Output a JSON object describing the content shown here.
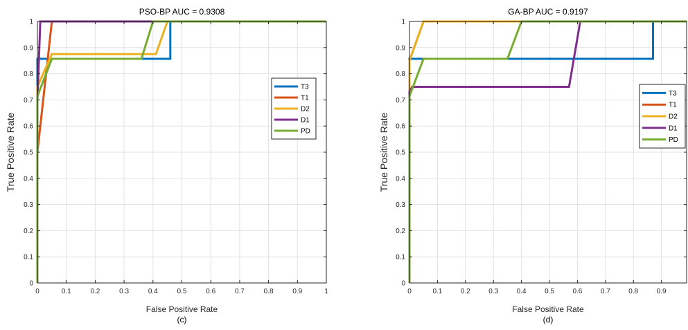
{
  "chart_data": [
    {
      "type": "line",
      "title": "PSO-BP AUC = 0.9308",
      "xlabel": "False Positive Rate",
      "ylabel": "True Positive Rate",
      "caption": "(c)",
      "xlim": [
        0,
        1
      ],
      "ylim": [
        0,
        1
      ],
      "xticks": [
        "0",
        "0.1",
        "0.2",
        "0.3",
        "0.4",
        "0.5",
        "0.6",
        "0.7",
        "0.8",
        "0.9",
        "1"
      ],
      "yticks": [
        "0",
        "0.1",
        "0.2",
        "0.3",
        "0.4",
        "0.5",
        "0.6",
        "0.7",
        "0.8",
        "0.9",
        "1"
      ],
      "grid": true,
      "legend": "right",
      "series": [
        {
          "name": "T3",
          "color": "#0072bd",
          "x": [
            0,
            0,
            0.46,
            0.46,
            1
          ],
          "y": [
            0,
            0.857,
            0.857,
            1,
            1
          ]
        },
        {
          "name": "T1",
          "color": "#d95319",
          "x": [
            0,
            0,
            0.05,
            1
          ],
          "y": [
            0,
            0.5,
            1,
            1
          ]
        },
        {
          "name": "D2",
          "color": "#edb120",
          "x": [
            0,
            0,
            0.05,
            0.41,
            0.45,
            1
          ],
          "y": [
            0,
            0.75,
            0.875,
            0.875,
            1,
            1
          ]
        },
        {
          "name": "D1",
          "color": "#7e2f8e",
          "x": [
            0,
            0,
            0.01,
            1
          ],
          "y": [
            0,
            0.7,
            1,
            1
          ]
        },
        {
          "name": "PD",
          "color": "#77ac30",
          "x": [
            0,
            0,
            0.05,
            0.36,
            0.4,
            1
          ],
          "y": [
            0,
            0.714,
            0.857,
            0.857,
            1,
            1
          ]
        }
      ]
    },
    {
      "type": "line",
      "title": "GA-BP AUC = 0.9197",
      "xlabel": "False Positive Rate",
      "ylabel": "True Positive Rate",
      "caption": "(d)",
      "xlim": [
        0,
        0.99
      ],
      "ylim": [
        0,
        1
      ],
      "xticks": [
        "0",
        "0.1",
        "0.2",
        "0.3",
        "0.4",
        "0.5",
        "0.6",
        "0.7",
        "0.8",
        "0.9"
      ],
      "yticks": [
        "0",
        "0.1",
        "0.2",
        "0.3",
        "0.4",
        "0.5",
        "0.6",
        "0.7",
        "0.8",
        "0.9",
        "1"
      ],
      "grid": true,
      "legend": "right",
      "series": [
        {
          "name": "T3",
          "color": "#0072bd",
          "x": [
            0,
            0,
            0.05,
            0.87,
            0.87,
            0.99
          ],
          "y": [
            0,
            0.857,
            0.857,
            0.857,
            1,
            1
          ]
        },
        {
          "name": "T1",
          "color": "#d95319",
          "x": [
            0,
            0,
            0.05,
            0.99
          ],
          "y": [
            0,
            0.85,
            1,
            1
          ]
        },
        {
          "name": "D2",
          "color": "#edb120",
          "x": [
            0,
            0,
            0.05,
            0.99
          ],
          "y": [
            0,
            0.85,
            1,
            1
          ]
        },
        {
          "name": "D1",
          "color": "#7e2f8e",
          "x": [
            0,
            0,
            0.01,
            0.57,
            0.61,
            0.99
          ],
          "y": [
            0,
            0.73,
            0.75,
            0.75,
            1,
            1
          ]
        },
        {
          "name": "PD",
          "color": "#77ac30",
          "x": [
            0,
            0,
            0.05,
            0.35,
            0.4,
            0.99
          ],
          "y": [
            0,
            0.714,
            0.857,
            0.857,
            1,
            1
          ]
        }
      ]
    }
  ]
}
